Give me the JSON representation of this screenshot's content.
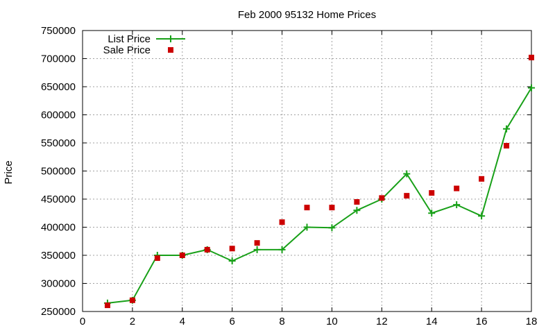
{
  "chart_data": {
    "type": "line",
    "title": "Feb 2000 95132 Home Prices",
    "xlabel": "",
    "ylabel": "Price",
    "xlim": [
      0,
      18
    ],
    "ylim": [
      250000,
      750000
    ],
    "xticks": [
      0,
      2,
      4,
      6,
      8,
      10,
      12,
      14,
      16,
      18
    ],
    "yticks": [
      250000,
      300000,
      350000,
      400000,
      450000,
      500000,
      550000,
      600000,
      650000,
      700000,
      750000
    ],
    "grid": true,
    "legend_position": "top-left",
    "series": [
      {
        "name": "List Price",
        "style": "line-points",
        "color": "#18a018",
        "marker": "plus",
        "x": [
          1,
          2,
          3,
          4,
          5,
          6,
          7,
          8,
          9,
          10,
          11,
          12,
          13,
          14,
          15,
          16,
          17,
          18
        ],
        "y": [
          265000,
          270000,
          350000,
          350000,
          360000,
          340000,
          360000,
          360000,
          400000,
          399000,
          430000,
          450000,
          495000,
          425000,
          440000,
          420000,
          575000,
          648000
        ]
      },
      {
        "name": "Sale Price",
        "style": "points",
        "color": "#cc0000",
        "marker": "square",
        "x": [
          1,
          2,
          3,
          4,
          5,
          6,
          7,
          8,
          9,
          10,
          11,
          12,
          13,
          14,
          15,
          16,
          17,
          18
        ],
        "y": [
          261000,
          270000,
          345000,
          350000,
          360000,
          362000,
          372000,
          409000,
          435000,
          435000,
          445000,
          452000,
          456000,
          461000,
          469000,
          486000,
          545000,
          702000
        ]
      }
    ]
  }
}
